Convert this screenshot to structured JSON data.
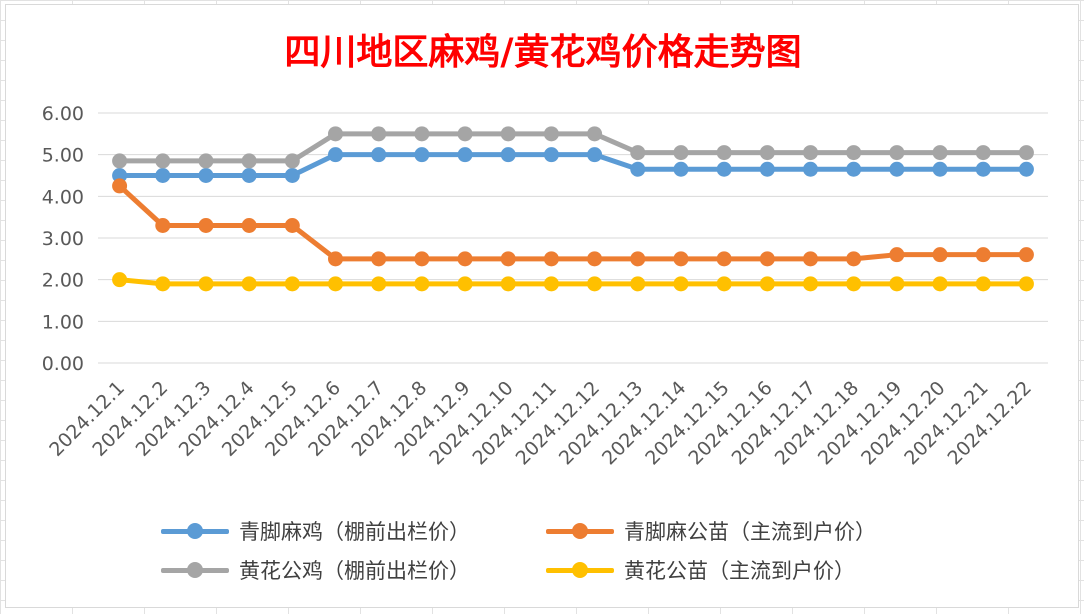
{
  "chart_data": {
    "type": "line",
    "title": "四川地区麻鸡/黄花鸡价格走势图",
    "categories": [
      "2024.12.1",
      "2024.12.2",
      "2024.12.3",
      "2024.12.4",
      "2024.12.5",
      "2024.12.6",
      "2024.12.7",
      "2024.12.8",
      "2024.12.9",
      "2024.12.10",
      "2024.12.11",
      "2024.12.12",
      "2024.12.13",
      "2024.12.14",
      "2024.12.15",
      "2024.12.16",
      "2024.12.17",
      "2024.12.18",
      "2024.12.19",
      "2024.12.20",
      "2024.12.21",
      "2024.12.22"
    ],
    "y_ticks": [
      "0.00",
      "1.00",
      "2.00",
      "3.00",
      "4.00",
      "5.00",
      "6.00"
    ],
    "ylim": [
      0,
      6
    ],
    "grid": true,
    "legend_position": "bottom",
    "series": [
      {
        "name": "青脚麻鸡（棚前出栏价）",
        "color": "#5B9BD5",
        "values": [
          4.5,
          4.5,
          4.5,
          4.5,
          4.5,
          5.0,
          5.0,
          5.0,
          5.0,
          5.0,
          5.0,
          5.0,
          4.65,
          4.65,
          4.65,
          4.65,
          4.65,
          4.65,
          4.65,
          4.65,
          4.65,
          4.65
        ]
      },
      {
        "name": "青脚麻公苗（主流到户价）",
        "color": "#ED7D31",
        "values": [
          4.25,
          3.3,
          3.3,
          3.3,
          3.3,
          2.5,
          2.5,
          2.5,
          2.5,
          2.5,
          2.5,
          2.5,
          2.5,
          2.5,
          2.5,
          2.5,
          2.5,
          2.5,
          2.6,
          2.6,
          2.6,
          2.6
        ]
      },
      {
        "name": "黄花公鸡（棚前出栏价）",
        "color": "#A5A5A5",
        "values": [
          4.85,
          4.85,
          4.85,
          4.85,
          4.85,
          5.5,
          5.5,
          5.5,
          5.5,
          5.5,
          5.5,
          5.5,
          5.05,
          5.05,
          5.05,
          5.05,
          5.05,
          5.05,
          5.05,
          5.05,
          5.05,
          5.05
        ]
      },
      {
        "name": "黄花公苗（主流到户价）",
        "color": "#FFC000",
        "values": [
          2.0,
          1.9,
          1.9,
          1.9,
          1.9,
          1.9,
          1.9,
          1.9,
          1.9,
          1.9,
          1.9,
          1.9,
          1.9,
          1.9,
          1.9,
          1.9,
          1.9,
          1.9,
          1.9,
          1.9,
          1.9,
          1.9
        ]
      }
    ]
  }
}
